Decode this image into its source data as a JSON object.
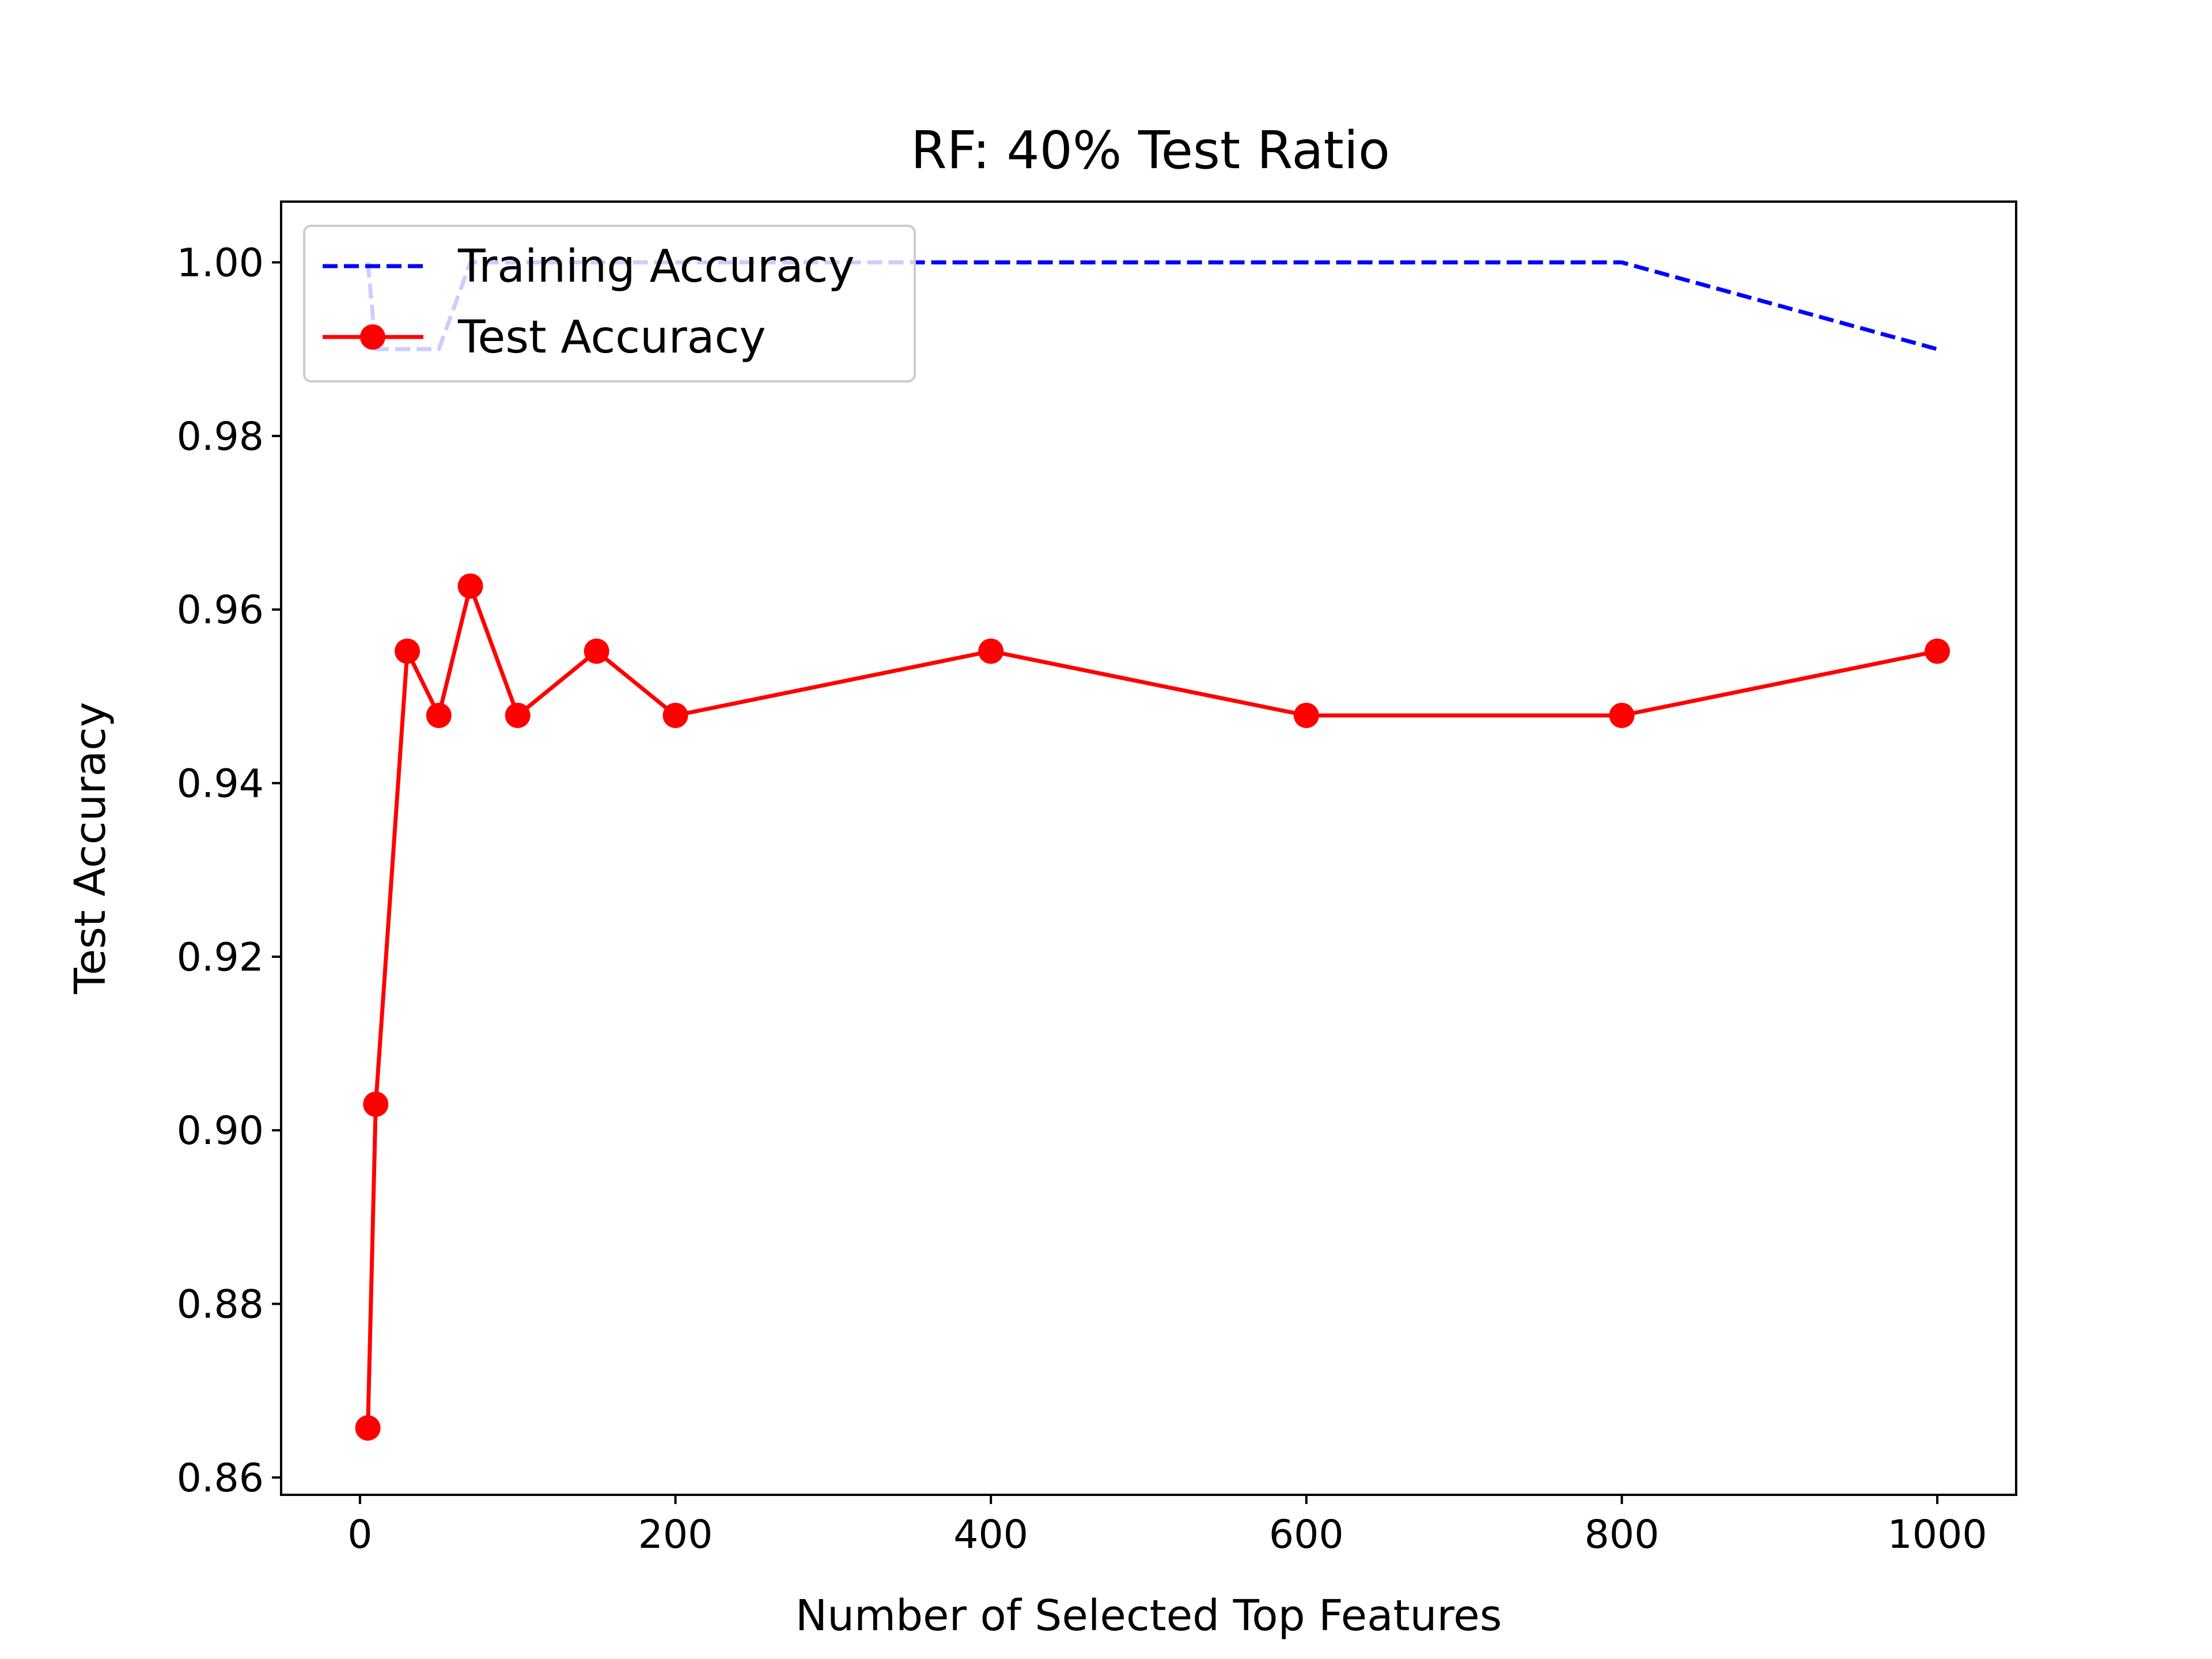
{
  "chart_data": {
    "type": "line",
    "title": "RF: 40% Test Ratio",
    "xlabel": "Number of Selected Top Features",
    "ylabel": "Test Accuracy",
    "xlim": [
      -50,
      1050
    ],
    "ylim": [
      0.858,
      1.007
    ],
    "xticks": [
      0,
      200,
      400,
      600,
      800,
      1000
    ],
    "xtick_labels": [
      "0",
      "200",
      "400",
      "600",
      "800",
      "1000"
    ],
    "yticks": [
      0.86,
      0.88,
      0.9,
      0.92,
      0.94,
      0.96,
      0.98,
      1.0
    ],
    "ytick_labels": [
      "0.86",
      "0.88",
      "0.90",
      "0.92",
      "0.94",
      "0.96",
      "0.98",
      "1.00"
    ],
    "grid": false,
    "legend_position": "top-left",
    "series": [
      {
        "name": "Training Accuracy",
        "color": "#0000ff",
        "style": "dashed",
        "marker": "none",
        "x": [
          5,
          10,
          30,
          50,
          70,
          100,
          150,
          200,
          400,
          600,
          800,
          1000
        ],
        "y": [
          1.0,
          0.99,
          0.99,
          0.99,
          1.0,
          1.0,
          1.0,
          1.0,
          1.0,
          1.0,
          1.0,
          0.99
        ]
      },
      {
        "name": "Test Accuracy",
        "color": "#ff0000",
        "style": "solid",
        "marker": "circle",
        "x": [
          5,
          10,
          30,
          50,
          70,
          100,
          150,
          200,
          400,
          600,
          800,
          1000
        ],
        "y": [
          0.8657,
          0.903,
          0.9552,
          0.9478,
          0.9627,
          0.9478,
          0.9552,
          0.9478,
          0.9552,
          0.9478,
          0.9478,
          0.9552
        ]
      }
    ]
  }
}
